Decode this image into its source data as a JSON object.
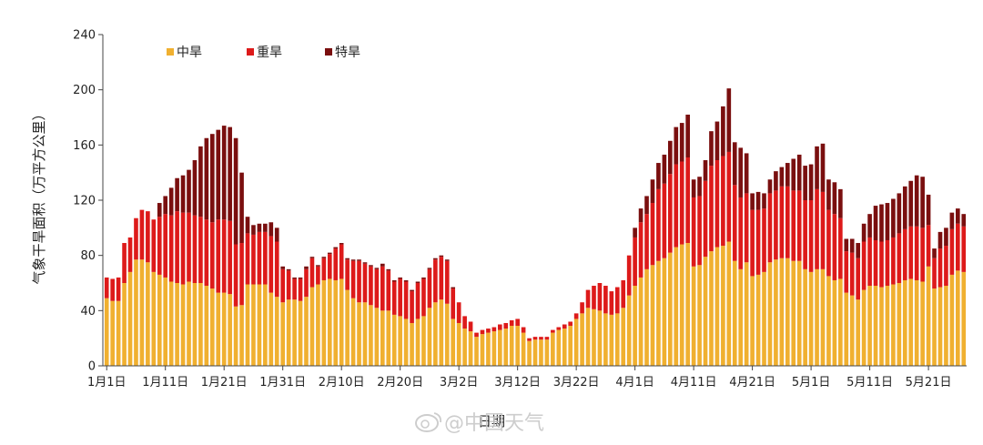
{
  "chart_data": {
    "type": "bar",
    "stacked": true,
    "ylabel": "气象干旱面积（万平方公里）",
    "xlabel": "日期",
    "ylim": [
      0,
      240
    ],
    "yticks": [
      0,
      40,
      80,
      120,
      160,
      200,
      240
    ],
    "grid": false,
    "legend_position": "top-left",
    "x_tick_labels": [
      "1月1日",
      "1月11日",
      "1月21日",
      "1月31日",
      "2月10日",
      "2月20日",
      "3月2日",
      "3月12日",
      "3月22日",
      "4月1日",
      "4月11日",
      "4月21日",
      "5月1日",
      "5月11日",
      "5月21日"
    ],
    "x_tick_every": 10,
    "series": [
      {
        "name": "中旱",
        "color": "#f0b030"
      },
      {
        "name": "重旱",
        "color": "#dd1a1a"
      },
      {
        "name": "特旱",
        "color": "#7a0f0f"
      }
    ],
    "totals": [
      [
        64,
        49,
        15,
        0
      ],
      [
        63,
        47,
        16,
        0
      ],
      [
        64,
        47,
        17,
        0
      ],
      [
        89,
        60,
        29,
        0
      ],
      [
        93,
        68,
        25,
        0
      ],
      [
        107,
        77,
        30,
        0
      ],
      [
        113,
        77,
        36,
        0
      ],
      [
        112,
        75,
        37,
        0
      ],
      [
        106,
        68,
        38,
        0
      ],
      [
        118,
        66,
        42,
        10
      ],
      [
        123,
        64,
        46,
        13
      ],
      [
        129,
        61,
        48,
        20
      ],
      [
        136,
        60,
        52,
        24
      ],
      [
        138,
        59,
        52,
        27
      ],
      [
        142,
        61,
        50,
        31
      ],
      [
        149,
        60,
        49,
        40
      ],
      [
        159,
        60,
        48,
        51
      ],
      [
        165,
        58,
        48,
        59
      ],
      [
        168,
        56,
        48,
        64
      ],
      [
        171,
        53,
        53,
        65
      ],
      [
        174,
        53,
        53,
        68
      ],
      [
        173,
        52,
        53,
        68
      ],
      [
        165,
        43,
        45,
        77
      ],
      [
        140,
        44,
        45,
        51
      ],
      [
        108,
        59,
        37,
        12
      ],
      [
        102,
        59,
        36,
        7
      ],
      [
        103,
        59,
        38,
        6
      ],
      [
        103,
        59,
        38,
        6
      ],
      [
        104,
        53,
        41,
        10
      ],
      [
        100,
        50,
        40,
        10
      ],
      [
        72,
        46,
        24,
        2
      ],
      [
        70,
        48,
        21,
        1
      ],
      [
        64,
        48,
        15,
        1
      ],
      [
        64,
        47,
        16,
        1
      ],
      [
        72,
        50,
        20,
        2
      ],
      [
        79,
        57,
        21,
        1
      ],
      [
        73,
        59,
        13,
        1
      ],
      [
        79,
        62,
        16,
        1
      ],
      [
        82,
        63,
        18,
        1
      ],
      [
        86,
        62,
        23,
        1
      ],
      [
        89,
        63,
        25,
        1
      ],
      [
        78,
        55,
        22,
        1
      ],
      [
        77,
        49,
        27,
        1
      ],
      [
        77,
        46,
        30,
        1
      ],
      [
        75,
        46,
        28,
        1
      ],
      [
        73,
        44,
        28,
        1
      ],
      [
        71,
        42,
        28,
        1
      ],
      [
        74,
        40,
        32,
        2
      ],
      [
        70,
        40,
        29,
        1
      ],
      [
        62,
        37,
        24,
        1
      ],
      [
        64,
        36,
        27,
        1
      ],
      [
        62,
        34,
        27,
        1
      ],
      [
        55,
        31,
        23,
        1
      ],
      [
        61,
        34,
        26,
        1
      ],
      [
        64,
        36,
        27,
        1
      ],
      [
        71,
        42,
        28,
        1
      ],
      [
        78,
        46,
        31,
        1
      ],
      [
        80,
        48,
        31,
        1
      ],
      [
        77,
        45,
        31,
        1
      ],
      [
        57,
        34,
        22,
        1
      ],
      [
        46,
        31,
        15,
        0
      ],
      [
        36,
        27,
        9,
        0
      ],
      [
        32,
        25,
        7,
        0
      ],
      [
        24,
        21,
        3,
        0
      ],
      [
        26,
        23,
        3,
        0
      ],
      [
        27,
        24,
        3,
        0
      ],
      [
        28,
        25,
        3,
        0
      ],
      [
        30,
        26,
        4,
        0
      ],
      [
        31,
        27,
        4,
        0
      ],
      [
        33,
        29,
        4,
        0
      ],
      [
        34,
        29,
        5,
        0
      ],
      [
        28,
        24,
        4,
        0
      ],
      [
        20,
        18,
        2,
        0
      ],
      [
        21,
        19,
        2,
        0
      ],
      [
        21,
        19,
        2,
        0
      ],
      [
        21,
        19,
        2,
        0
      ],
      [
        26,
        24,
        2,
        0
      ],
      [
        28,
        26,
        2,
        0
      ],
      [
        30,
        27,
        3,
        0
      ],
      [
        32,
        29,
        3,
        0
      ],
      [
        38,
        34,
        4,
        0
      ],
      [
        46,
        38,
        8,
        0
      ],
      [
        55,
        42,
        13,
        0
      ],
      [
        58,
        41,
        17,
        0
      ],
      [
        60,
        40,
        20,
        0
      ],
      [
        58,
        38,
        20,
        0
      ],
      [
        54,
        37,
        17,
        0
      ],
      [
        57,
        38,
        19,
        0
      ],
      [
        62,
        42,
        20,
        0
      ],
      [
        80,
        51,
        29,
        0
      ],
      [
        100,
        58,
        35,
        7
      ],
      [
        114,
        64,
        40,
        10
      ],
      [
        123,
        70,
        40,
        13
      ],
      [
        135,
        73,
        45,
        17
      ],
      [
        147,
        76,
        52,
        19
      ],
      [
        153,
        78,
        54,
        21
      ],
      [
        163,
        82,
        57,
        24
      ],
      [
        173,
        86,
        60,
        27
      ],
      [
        176,
        88,
        60,
        28
      ],
      [
        182,
        89,
        62,
        31
      ],
      [
        135,
        72,
        50,
        13
      ],
      [
        137,
        73,
        50,
        14
      ],
      [
        149,
        79,
        55,
        15
      ],
      [
        170,
        83,
        62,
        25
      ],
      [
        177,
        86,
        63,
        28
      ],
      [
        188,
        87,
        65,
        36
      ],
      [
        201,
        90,
        65,
        46
      ],
      [
        162,
        76,
        55,
        31
      ],
      [
        158,
        70,
        52,
        36
      ],
      [
        154,
        75,
        50,
        29
      ],
      [
        125,
        65,
        48,
        12
      ],
      [
        126,
        66,
        47,
        13
      ],
      [
        125,
        68,
        46,
        11
      ],
      [
        135,
        75,
        50,
        10
      ],
      [
        141,
        77,
        50,
        14
      ],
      [
        144,
        78,
        52,
        14
      ],
      [
        147,
        78,
        52,
        17
      ],
      [
        150,
        76,
        51,
        23
      ],
      [
        153,
        76,
        51,
        26
      ],
      [
        145,
        70,
        50,
        25
      ],
      [
        146,
        68,
        52,
        26
      ],
      [
        159,
        70,
        58,
        31
      ],
      [
        161,
        70,
        56,
        35
      ],
      [
        135,
        65,
        48,
        22
      ],
      [
        133,
        62,
        48,
        23
      ],
      [
        128,
        63,
        44,
        21
      ],
      [
        92,
        53,
        30,
        9
      ],
      [
        92,
        51,
        31,
        10
      ],
      [
        89,
        48,
        30,
        11
      ],
      [
        103,
        55,
        35,
        13
      ],
      [
        110,
        58,
        35,
        17
      ],
      [
        116,
        58,
        33,
        25
      ],
      [
        117,
        57,
        33,
        27
      ],
      [
        118,
        58,
        33,
        27
      ],
      [
        121,
        59,
        34,
        28
      ],
      [
        125,
        60,
        36,
        29
      ],
      [
        130,
        62,
        37,
        31
      ],
      [
        134,
        63,
        38,
        33
      ],
      [
        138,
        62,
        39,
        37
      ],
      [
        137,
        61,
        39,
        37
      ],
      [
        124,
        72,
        30,
        22
      ],
      [
        85,
        56,
        22,
        7
      ],
      [
        97,
        57,
        28,
        12
      ],
      [
        100,
        58,
        29,
        13
      ],
      [
        111,
        66,
        33,
        12
      ],
      [
        114,
        69,
        34,
        11
      ],
      [
        110,
        68,
        33,
        9
      ]
    ]
  },
  "watermark": {
    "text": "@中国天气",
    "icon": "weibo-logo"
  }
}
